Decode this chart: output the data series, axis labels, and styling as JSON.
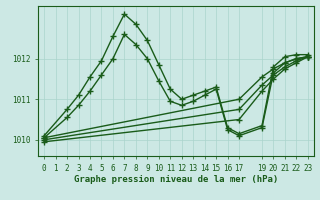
{
  "xlabel": "Graphe pression niveau de la mer (hPa)",
  "bg_color": "#cce8e4",
  "grid_color": "#aad4cc",
  "line_color": "#1a5c1a",
  "xlim": [
    -0.5,
    23.5
  ],
  "ylim": [
    1009.6,
    1013.3
  ],
  "yticks": [
    1010,
    1011,
    1012
  ],
  "xticks": [
    0,
    1,
    2,
    3,
    4,
    5,
    6,
    7,
    8,
    9,
    10,
    11,
    12,
    13,
    14,
    15,
    16,
    17,
    19,
    20,
    21,
    22,
    23
  ],
  "xtick_labels": [
    "0",
    "1",
    "2",
    "3",
    "4",
    "5",
    "6",
    "7",
    "8",
    "9",
    "10",
    "11",
    "12",
    "13",
    "14",
    "15",
    "16",
    "17",
    "19",
    "20",
    "21",
    "22",
    "23"
  ],
  "series": [
    {
      "x": [
        0,
        2,
        3,
        4,
        5,
        6,
        7,
        8,
        9,
        10,
        11,
        12,
        13,
        14,
        15,
        16,
        17,
        19,
        20,
        21,
        22,
        23
      ],
      "y": [
        1010.1,
        1010.75,
        1011.1,
        1011.55,
        1011.95,
        1012.55,
        1013.1,
        1012.85,
        1012.45,
        1011.85,
        1011.25,
        1011.0,
        1011.1,
        1011.2,
        1011.3,
        1010.3,
        1010.15,
        1010.35,
        1011.8,
        1012.05,
        1012.1,
        1012.1
      ],
      "marker": "+",
      "markersize": 5,
      "linewidth": 1.0,
      "linestyle": "-"
    },
    {
      "x": [
        0,
        2,
        3,
        4,
        5,
        6,
        7,
        8,
        9,
        10,
        11,
        12,
        13,
        14,
        15,
        16,
        17,
        19,
        20,
        21,
        22,
        23
      ],
      "y": [
        1010.05,
        1010.55,
        1010.85,
        1011.2,
        1011.6,
        1012.0,
        1012.6,
        1012.35,
        1012.0,
        1011.45,
        1010.95,
        1010.85,
        1010.95,
        1011.1,
        1011.25,
        1010.25,
        1010.1,
        1010.3,
        1011.65,
        1011.9,
        1012.0,
        1012.05
      ],
      "marker": "+",
      "markersize": 5,
      "linewidth": 1.0,
      "linestyle": "-"
    },
    {
      "x": [
        0,
        17,
        19,
        20,
        21,
        22,
        23
      ],
      "y": [
        1010.05,
        1011.0,
        1011.55,
        1011.75,
        1011.9,
        1012.0,
        1012.05
      ],
      "marker": "+",
      "markersize": 5,
      "linewidth": 1.0,
      "linestyle": "-"
    },
    {
      "x": [
        0,
        17,
        19,
        20,
        21,
        22,
        23
      ],
      "y": [
        1010.0,
        1010.75,
        1011.35,
        1011.6,
        1011.8,
        1011.95,
        1012.05
      ],
      "marker": "+",
      "markersize": 5,
      "linewidth": 1.0,
      "linestyle": "-"
    },
    {
      "x": [
        0,
        17,
        19,
        20,
        21,
        22,
        23
      ],
      "y": [
        1009.95,
        1010.5,
        1011.2,
        1011.5,
        1011.75,
        1011.9,
        1012.05
      ],
      "marker": "+",
      "markersize": 5,
      "linewidth": 1.0,
      "linestyle": "-"
    }
  ],
  "tick_label_fontsize": 5.5,
  "xlabel_fontsize": 6.5,
  "tick_color": "#1a5c1a",
  "xlabel_color": "#1a5c1a"
}
